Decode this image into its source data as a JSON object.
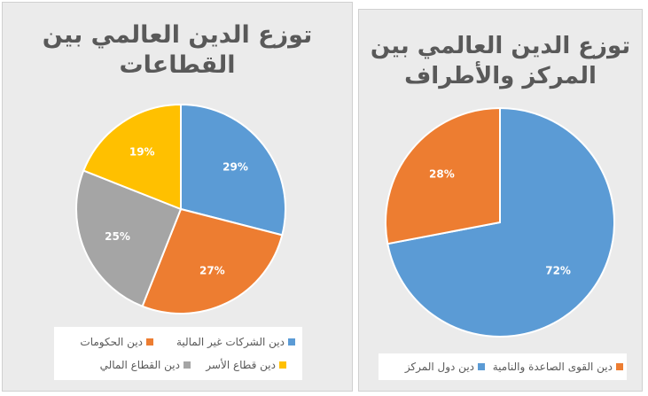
{
  "chart_data": [
    {
      "type": "pie",
      "title": [
        "توزع الدين العالمي بين",
        "القطاعات"
      ],
      "slices": [
        {
          "label": "دين الشركات غير المالية",
          "value": 29,
          "color": "#5b9bd5",
          "display": "29%"
        },
        {
          "label": "دين الحكومات",
          "value": 27,
          "color": "#ed7d31",
          "display": "27%"
        },
        {
          "label": "دين القطاع المالي",
          "value": 25,
          "color": "#a5a5a5",
          "display": "25%"
        },
        {
          "label": "دين قطاع الأسر",
          "value": 19,
          "color": "#ffc000",
          "display": "19%"
        }
      ],
      "legend_position": "bottom"
    },
    {
      "type": "pie",
      "title": [
        "توزع الدين العالمي بين",
        "المركز والأطراف"
      ],
      "slices": [
        {
          "label": "دين دول المركز",
          "value": 72,
          "color": "#5b9bd5",
          "display": "72%"
        },
        {
          "label": "دين القوى الصاعدة والنامية",
          "value": 28,
          "color": "#ed7d31",
          "display": "28%"
        }
      ],
      "legend_position": "bottom"
    }
  ]
}
